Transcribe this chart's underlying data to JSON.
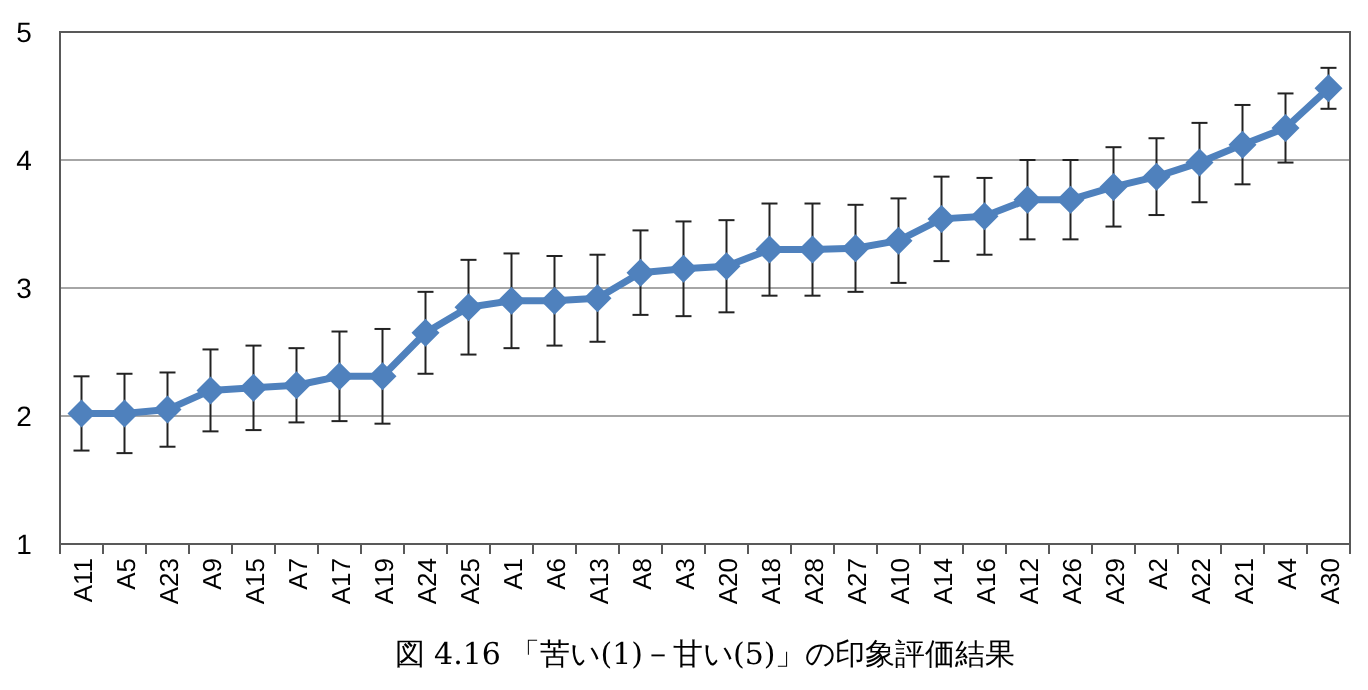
{
  "chart_data": {
    "type": "line",
    "categories": [
      "A11",
      "A5",
      "A23",
      "A9",
      "A15",
      "A7",
      "A17",
      "A19",
      "A24",
      "A25",
      "A1",
      "A6",
      "A13",
      "A8",
      "A3",
      "A20",
      "A18",
      "A28",
      "A27",
      "A10",
      "A14",
      "A16",
      "A12",
      "A26",
      "A29",
      "A2",
      "A22",
      "A21",
      "A4",
      "A30"
    ],
    "series": [
      {
        "color": "#4f81bd",
        "values": [
          2.02,
          2.02,
          2.05,
          2.2,
          2.22,
          2.24,
          2.31,
          2.31,
          2.65,
          2.85,
          2.9,
          2.9,
          2.92,
          3.12,
          3.15,
          3.17,
          3.3,
          3.3,
          3.31,
          3.37,
          3.54,
          3.56,
          3.69,
          3.69,
          3.79,
          3.87,
          3.98,
          4.12,
          4.25,
          4.56
        ],
        "errors": [
          0.29,
          0.31,
          0.29,
          0.32,
          0.33,
          0.29,
          0.35,
          0.37,
          0.32,
          0.37,
          0.37,
          0.35,
          0.34,
          0.33,
          0.37,
          0.36,
          0.36,
          0.36,
          0.34,
          0.33,
          0.33,
          0.3,
          0.31,
          0.31,
          0.31,
          0.3,
          0.31,
          0.31,
          0.27,
          0.16
        ]
      }
    ],
    "ylim": [
      1,
      5
    ],
    "yticks": [
      1,
      2,
      3,
      4,
      5
    ],
    "grid": "y",
    "marker": "diamond",
    "line_style": "solid",
    "annotations": [
      "図 4.16 「苦い(1)－甘い(5)」の印象評価結果"
    ]
  }
}
